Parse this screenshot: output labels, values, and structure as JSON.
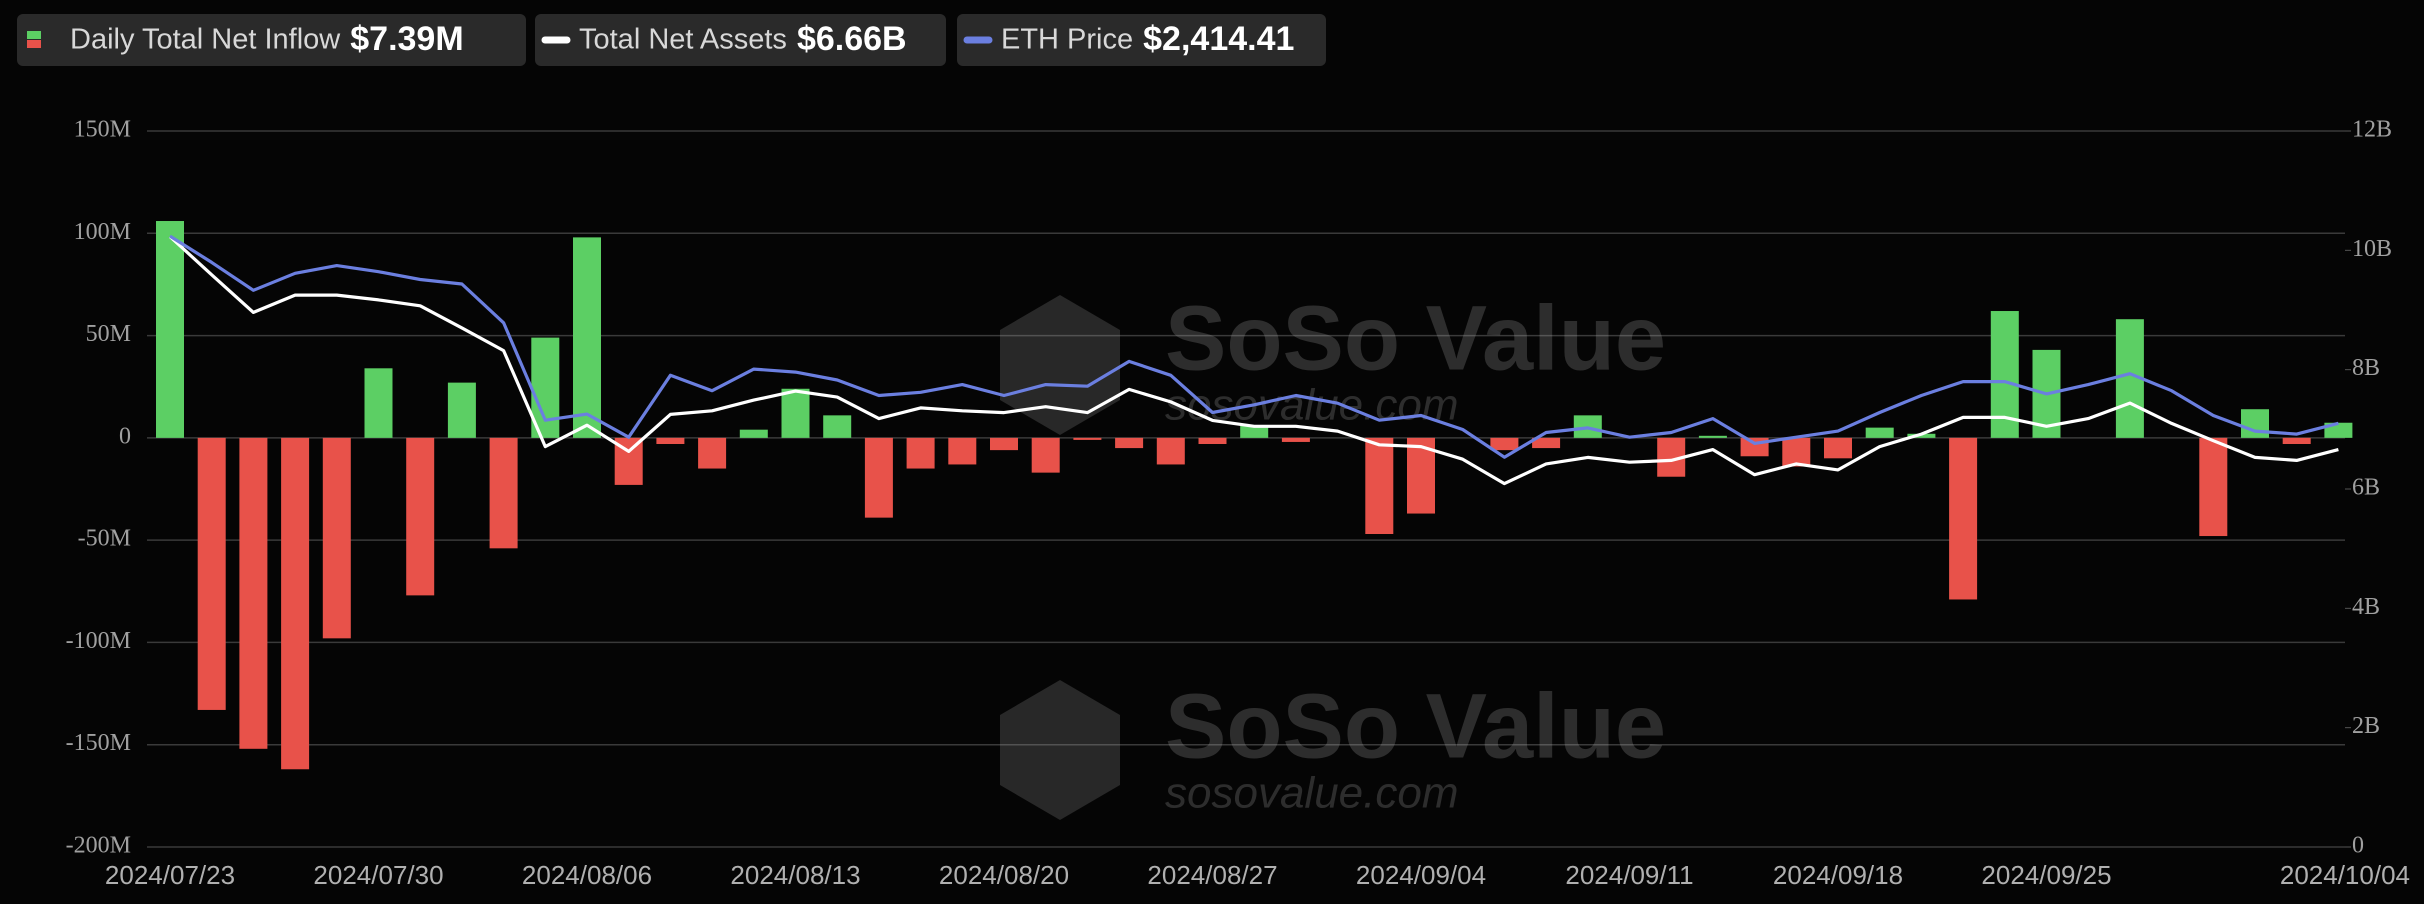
{
  "chart_data": {
    "type": "combo",
    "categories": [
      "2024/07/23",
      null,
      null,
      null,
      null,
      "2024/07/30",
      null,
      null,
      null,
      null,
      "2024/08/06",
      null,
      null,
      null,
      null,
      "2024/08/13",
      null,
      null,
      null,
      null,
      "2024/08/20",
      null,
      null,
      null,
      null,
      "2024/08/27",
      null,
      null,
      null,
      null,
      "2024/09/04",
      null,
      null,
      null,
      null,
      "2024/09/11",
      null,
      null,
      null,
      null,
      "2024/09/18",
      null,
      null,
      null,
      null,
      "2024/09/25",
      null,
      null,
      null,
      null,
      null,
      null,
      "2024/10/04"
    ],
    "series": [
      {
        "name": "Daily Total Net Inflow",
        "type": "bar",
        "color": "#5ccf64",
        "negative_color": "#e8524a",
        "latest": "$7.39M",
        "values": [
          106,
          -133,
          -152,
          -162,
          -98,
          34,
          -77,
          27,
          -54,
          49,
          98,
          -23,
          -3,
          -15,
          4,
          24,
          11,
          -39,
          -15,
          -13,
          -6,
          -17,
          -1,
          -5,
          -13,
          -3,
          6,
          -2,
          0,
          -47,
          -37,
          0,
          -6,
          -5,
          11,
          0,
          -19,
          1,
          -9,
          -14,
          -10,
          5,
          2,
          -79,
          62,
          43,
          0,
          58,
          0,
          -48,
          14,
          -3,
          7.39
        ]
      },
      {
        "name": "Total Net Assets",
        "type": "line",
        "axis": "y2",
        "color": "#ffffff",
        "latest": "$6.66B",
        "values": [
          10.23,
          9.59,
          8.96,
          9.25,
          9.25,
          9.17,
          9.07,
          8.7,
          8.32,
          6.71,
          7.07,
          6.63,
          7.25,
          7.31,
          7.49,
          7.64,
          7.54,
          7.18,
          7.36,
          7.31,
          7.28,
          7.38,
          7.28,
          7.67,
          7.46,
          7.15,
          7.05,
          7.05,
          6.97,
          6.74,
          6.71,
          6.5,
          6.09,
          6.42,
          6.53,
          6.45,
          6.48,
          6.66,
          6.24,
          6.42,
          6.32,
          6.71,
          6.92,
          7.2,
          7.2,
          7.05,
          7.18,
          7.44,
          7.1,
          6.81,
          6.53,
          6.48,
          6.66
        ]
      },
      {
        "name": "ETH Price",
        "type": "line",
        "axis": "y3",
        "color": "#6b7fe0",
        "latest": "$2,414.41",
        "values": [
          3481,
          3331,
          3172,
          3269,
          3313,
          3278,
          3234,
          3208,
          2987,
          2432,
          2467,
          2335,
          2688,
          2600,
          2723,
          2706,
          2661,
          2573,
          2591,
          2635,
          2573,
          2635,
          2626,
          2767,
          2688,
          2476,
          2520,
          2573,
          2529,
          2432,
          2459,
          2379,
          2221,
          2362,
          2388,
          2335,
          2362,
          2441,
          2300,
          2335,
          2370,
          2476,
          2573,
          2652,
          2652,
          2582,
          2635,
          2697,
          2600,
          2459,
          2370,
          2353,
          2414.41
        ]
      }
    ],
    "ylim": [
      -200,
      150
    ],
    "yticks": [
      {
        "value": -200,
        "label": "-200M"
      },
      {
        "value": -150,
        "label": "-150M"
      },
      {
        "value": -100,
        "label": "-100M"
      },
      {
        "value": -50,
        "label": "-50M"
      },
      0,
      {
        "value": 50,
        "label": "50M"
      },
      {
        "value": 100,
        "label": "100M"
      },
      {
        "value": 150,
        "label": "150M"
      }
    ],
    "y2lim": [
      0,
      12
    ],
    "y2ticks": [
      0,
      {
        "value": 2,
        "label": "2B"
      },
      {
        "value": 4,
        "label": "4B"
      },
      {
        "value": 6,
        "label": "6B"
      },
      {
        "value": 8,
        "label": "8B"
      },
      {
        "value": 10,
        "label": "10B"
      },
      {
        "value": 12,
        "label": "12B"
      }
    ],
    "y3lim": [
      0,
      4080
    ],
    "grid": true,
    "watermark": {
      "brand": "SoSo Value",
      "site": "sosovalue.com"
    }
  }
}
